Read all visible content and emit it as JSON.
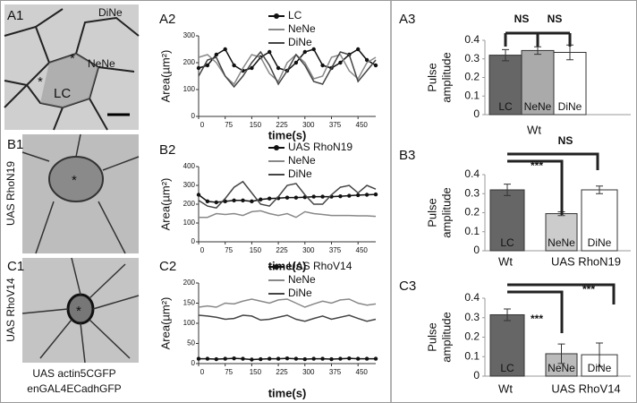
{
  "images": {
    "labels": [
      "A1",
      "B1",
      "C1"
    ],
    "a1_regions": [
      "DiNe",
      "NeNe",
      "LC"
    ],
    "b1_side": "UAS RhoN19",
    "c1_side": "UAS RhoV14",
    "caption": [
      "UAS actin5CGFP",
      "enGAL4ECadhGFP"
    ]
  },
  "chart_data": [
    {
      "type": "line",
      "title": "A2",
      "y_label": "Area(µm²)",
      "x_label": "time(s)",
      "x": [
        0,
        25,
        50,
        75,
        100,
        125,
        150,
        175,
        200,
        225,
        250,
        275,
        300,
        325,
        350,
        375,
        400,
        425,
        450,
        475,
        500
      ],
      "xlim": [
        0,
        500
      ],
      "xticks": [
        0,
        75,
        150,
        225,
        300,
        375,
        450
      ],
      "ylim": [
        0,
        300
      ],
      "yticks": [
        0,
        100,
        200,
        300
      ],
      "series": [
        {
          "name": "LC",
          "color": "#111111",
          "marker": "circle",
          "values": [
            180,
            190,
            230,
            250,
            190,
            170,
            180,
            220,
            240,
            180,
            170,
            200,
            240,
            250,
            190,
            180,
            200,
            230,
            250,
            210,
            190
          ]
        },
        {
          "name": "NeNe",
          "color": "#888888",
          "values": [
            220,
            230,
            200,
            150,
            120,
            180,
            230,
            220,
            160,
            130,
            200,
            230,
            200,
            140,
            150,
            220,
            230,
            170,
            140,
            200,
            220
          ]
        },
        {
          "name": "DiNe",
          "color": "#444444",
          "values": [
            150,
            210,
            220,
            150,
            110,
            150,
            200,
            240,
            190,
            120,
            170,
            230,
            190,
            130,
            120,
            180,
            240,
            230,
            130,
            170,
            210
          ]
        }
      ]
    },
    {
      "type": "line",
      "title": "B2",
      "y_label": "Area(µm²)",
      "x_label": "time(s)",
      "x": [
        0,
        25,
        50,
        75,
        100,
        125,
        150,
        175,
        200,
        225,
        250,
        275,
        300,
        325,
        350,
        375,
        400,
        425,
        450,
        475,
        500
      ],
      "xlim": [
        0,
        500
      ],
      "xticks": [
        0,
        75,
        150,
        225,
        300,
        375,
        450
      ],
      "ylim": [
        0,
        400
      ],
      "yticks": [
        0,
        100,
        200,
        300,
        400
      ],
      "series": [
        {
          "name": "UAS RhoN19",
          "color": "#111111",
          "marker": "circle",
          "values": [
            250,
            215,
            210,
            215,
            220,
            220,
            215,
            225,
            230,
            232,
            235,
            235,
            237,
            240,
            240,
            240,
            242,
            245,
            248,
            250,
            252
          ]
        },
        {
          "name": "NeNe",
          "color": "#888888",
          "values": [
            130,
            130,
            150,
            145,
            150,
            140,
            160,
            165,
            150,
            140,
            150,
            130,
            160,
            150,
            145,
            140,
            140,
            140,
            138,
            138,
            135
          ]
        },
        {
          "name": "DiNe",
          "color": "#444444",
          "values": [
            220,
            190,
            180,
            230,
            290,
            320,
            260,
            200,
            190,
            240,
            300,
            310,
            250,
            200,
            200,
            250,
            290,
            300,
            260,
            300,
            280
          ]
        }
      ]
    },
    {
      "type": "line",
      "title": "C2",
      "y_label": "Area(µm²)",
      "x_label": "time(s)",
      "x": [
        0,
        25,
        50,
        75,
        100,
        125,
        150,
        175,
        200,
        225,
        250,
        275,
        300,
        325,
        350,
        375,
        400,
        425,
        450,
        475,
        500
      ],
      "xlim": [
        0,
        500
      ],
      "xticks": [
        0,
        75,
        150,
        225,
        300,
        375,
        450
      ],
      "ylim": [
        0,
        200
      ],
      "yticks": [
        0,
        50,
        100,
        150,
        200
      ],
      "series": [
        {
          "name": "UAS RhoV14",
          "color": "#111111",
          "marker": "circle",
          "values": [
            12,
            12,
            11,
            12,
            13,
            12,
            10,
            11,
            12,
            12,
            13,
            12,
            11,
            12,
            12,
            11,
            12,
            13,
            12,
            12,
            12
          ]
        },
        {
          "name": "NeNe",
          "color": "#888888",
          "values": [
            140,
            143,
            140,
            150,
            148,
            155,
            160,
            155,
            150,
            158,
            160,
            150,
            140,
            148,
            155,
            150,
            158,
            160,
            150,
            145,
            148
          ]
        },
        {
          "name": "DiNe",
          "color": "#444444",
          "values": [
            120,
            118,
            115,
            110,
            112,
            120,
            118,
            108,
            110,
            115,
            120,
            110,
            105,
            112,
            118,
            110,
            115,
            120,
            112,
            105,
            110
          ]
        }
      ]
    },
    {
      "type": "bar",
      "title": "A3",
      "y_label": [
        "Pulse",
        "amplitude"
      ],
      "categories": [
        "LC",
        "NeNe",
        "DiNe"
      ],
      "groups": [
        "Wt"
      ],
      "values": [
        0.32,
        0.345,
        0.335
      ],
      "errors": [
        0.03,
        0.02,
        0.04
      ],
      "colors": [
        "#666666",
        "#aaaaaa",
        "#ffffff"
      ],
      "ylim": [
        0,
        0.4
      ],
      "yticks": [
        0,
        0.1,
        0.2,
        0.3,
        0.4
      ],
      "annotations": [
        "NS",
        "NS"
      ]
    },
    {
      "type": "bar",
      "title": "B3",
      "y_label": [
        "Pulse",
        "amplitude"
      ],
      "categories": [
        "LC",
        "NeNe",
        "DiNe"
      ],
      "groups": [
        "Wt",
        "UAS RhoN19"
      ],
      "values": [
        0.32,
        0.195,
        0.32
      ],
      "errors": [
        0.03,
        0.01,
        0.02
      ],
      "colors": [
        "#666666",
        "#cccccc",
        "#ffffff"
      ],
      "ylim": [
        0,
        0.4
      ],
      "yticks": [
        0,
        0.1,
        0.2,
        0.3,
        0.4
      ],
      "annotations": [
        "NS",
        "***"
      ]
    },
    {
      "type": "bar",
      "title": "C3",
      "y_label": [
        "Pulse",
        "amplitude"
      ],
      "categories": [
        "LC",
        "NeNe",
        "DiNe"
      ],
      "groups": [
        "Wt",
        "UAS RhoV14"
      ],
      "values": [
        0.315,
        0.115,
        0.11
      ],
      "errors": [
        0.03,
        0.05,
        0.06
      ],
      "colors": [
        "#666666",
        "#bbbbbb",
        "#ffffff"
      ],
      "ylim": [
        0,
        0.4
      ],
      "yticks": [
        0,
        0.1,
        0.2,
        0.3,
        0.4
      ],
      "annotations": [
        "***",
        "***"
      ]
    }
  ]
}
